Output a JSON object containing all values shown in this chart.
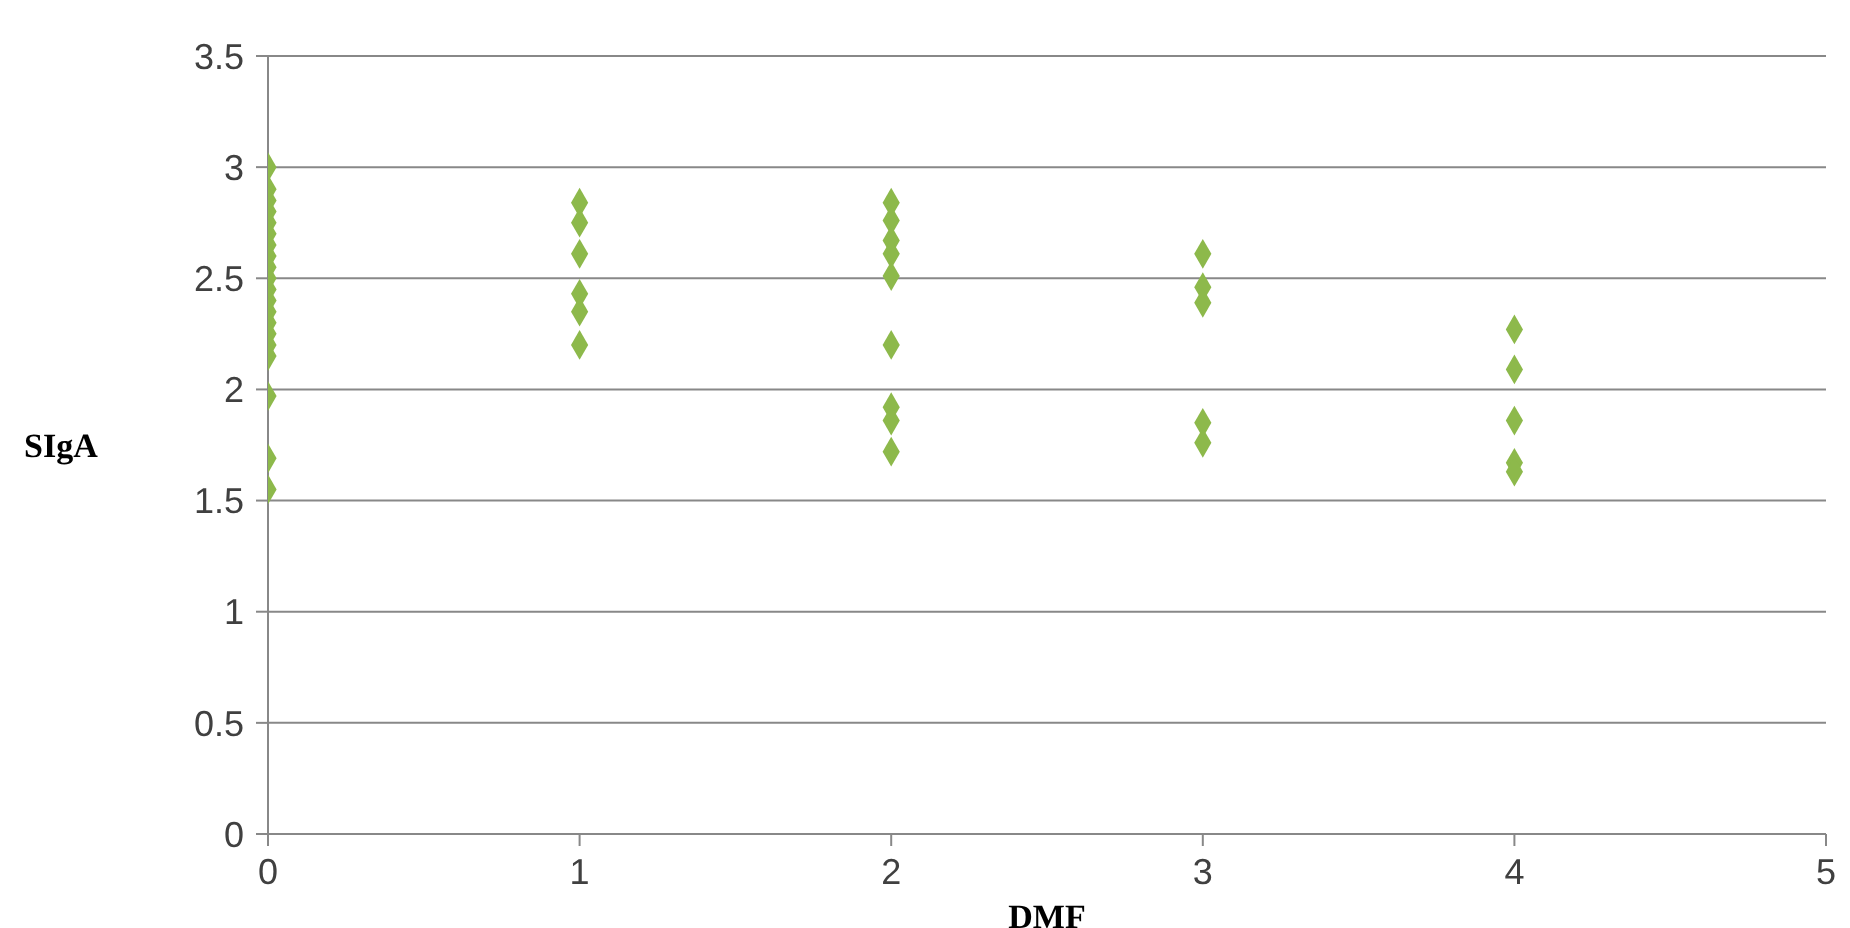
{
  "chart_data": {
    "type": "scatter",
    "xlabel": "DMF",
    "ylabel": "SIgA",
    "xlim": [
      0,
      5
    ],
    "xticks": [
      0,
      1,
      2,
      3,
      4,
      5
    ],
    "ylim": [
      0,
      3.5
    ],
    "yticks": [
      0,
      0.5,
      1,
      1.5,
      2,
      2.5,
      3,
      3.5
    ],
    "grid": "y",
    "marker": "diamond",
    "series": [
      {
        "color": "#8db94b",
        "x": [
          0,
          0,
          0,
          0,
          0,
          0,
          0,
          0,
          0,
          0,
          0,
          0,
          0,
          0,
          0,
          0,
          0,
          0,
          0,
          0,
          1,
          1,
          1,
          1,
          1,
          1,
          2,
          2,
          2,
          2,
          2,
          2,
          2,
          2,
          2,
          3,
          3,
          3,
          3,
          3,
          4,
          4,
          4,
          4,
          4
        ],
        "values": [
          3.0,
          2.9,
          2.85,
          2.8,
          2.75,
          2.7,
          2.65,
          2.6,
          2.55,
          2.5,
          2.45,
          2.4,
          2.35,
          2.3,
          2.25,
          2.2,
          2.15,
          1.97,
          1.69,
          1.55,
          2.84,
          2.75,
          2.61,
          2.43,
          2.35,
          2.2,
          2.84,
          2.76,
          2.67,
          2.61,
          2.51,
          2.2,
          1.92,
          1.86,
          1.72,
          2.61,
          2.46,
          2.39,
          1.85,
          1.76,
          2.27,
          2.09,
          1.86,
          1.67,
          1.63
        ]
      }
    ]
  }
}
